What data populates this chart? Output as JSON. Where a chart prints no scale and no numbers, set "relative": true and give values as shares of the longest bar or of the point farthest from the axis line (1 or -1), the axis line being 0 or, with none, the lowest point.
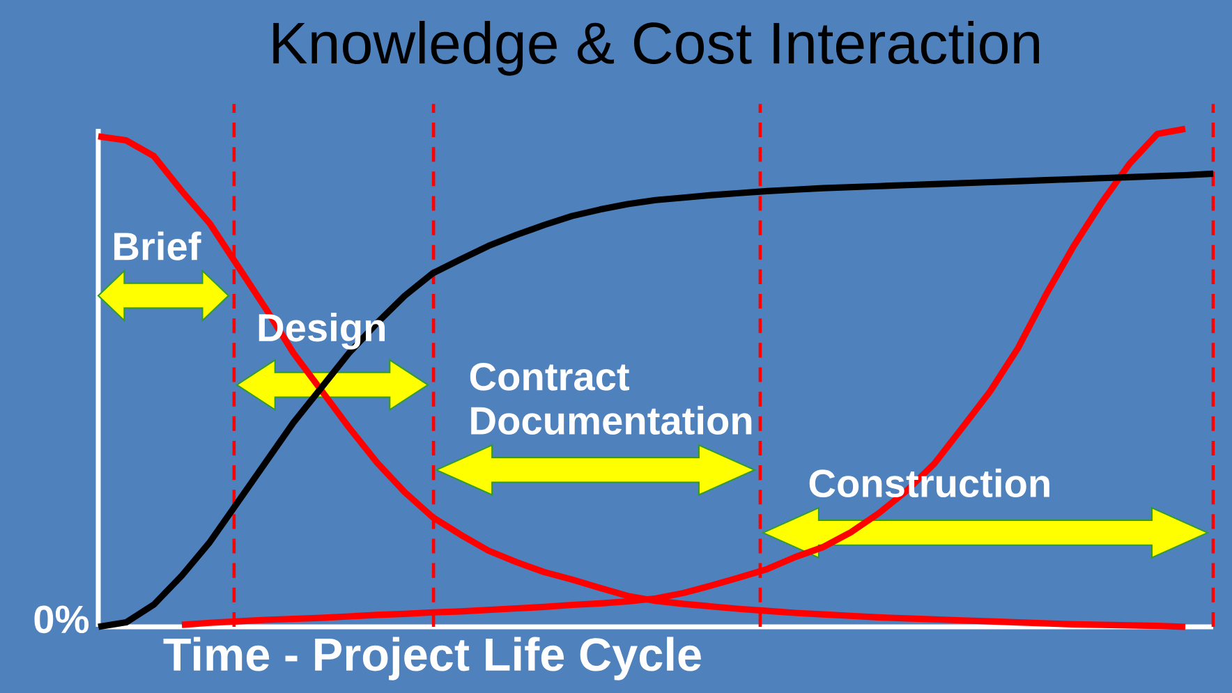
{
  "chart_data": {
    "type": "line",
    "title": "Knowledge & Cost Interaction",
    "xlabel": "Time - Project Life Cycle",
    "relative": true,
    "marker": "none",
    "line_style": "solid",
    "categories": [
      null,
      null,
      null,
      null,
      null,
      null,
      null,
      null,
      null,
      null,
      null,
      null,
      null,
      null,
      null,
      null,
      null,
      null,
      null,
      null,
      null,
      null,
      null,
      null,
      null,
      null,
      null,
      null,
      null,
      null,
      null,
      null,
      null,
      null,
      null,
      null,
      null,
      null,
      null,
      null,
      null
    ],
    "series": [
      {
        "color": "#ff0000",
        "values": [
          0.985,
          0.977,
          0.945,
          0.875,
          0.81,
          0.725,
          0.64,
          0.55,
          0.475,
          0.4,
          0.33,
          0.27,
          0.22,
          0.185,
          0.153,
          0.13,
          0.11,
          0.095,
          0.078,
          0.062,
          0.052,
          0.046,
          0.041,
          0.036,
          0.032,
          0.028,
          0.025,
          0.022,
          0.019,
          0.017,
          0.015,
          0.013,
          0.011,
          0.009,
          0.007,
          0.005,
          0.004,
          0.003,
          0.002,
          0,
          null
        ]
      },
      {
        "color": "#ff0000",
        "values": [
          null,
          null,
          null,
          0.004,
          0.008,
          0.011,
          0.014,
          0.016,
          0.018,
          0.021,
          0.024,
          0.026,
          0.029,
          0.031,
          0.034,
          0.037,
          0.04,
          0.044,
          0.047,
          0.051,
          0.057,
          0.068,
          0.083,
          0.099,
          0.116,
          0.14,
          0.16,
          0.19,
          0.228,
          0.273,
          0.328,
          0.4,
          0.473,
          0.56,
          0.667,
          0.765,
          0.852,
          0.93,
          0.99,
          1.0,
          null
        ]
      },
      {
        "color": "#000000",
        "values": [
          0,
          0.009,
          0.045,
          0.103,
          0.17,
          0.25,
          0.33,
          0.41,
          0.48,
          0.55,
          0.61,
          0.665,
          0.71,
          0.738,
          0.765,
          0.787,
          0.807,
          0.825,
          0.838,
          0.849,
          0.857,
          0.862,
          0.867,
          0.871,
          0.875,
          0.878,
          0.881,
          0.883,
          0.885,
          0.887,
          0.889,
          0.891,
          0.893,
          0.895,
          0.897,
          0.899,
          0.901,
          0.903,
          0.905,
          0.907,
          0.91
        ]
      }
    ],
    "annotations": [
      "0%",
      "Brief",
      "Design",
      "Contract Documentation",
      "Construction"
    ]
  }
}
